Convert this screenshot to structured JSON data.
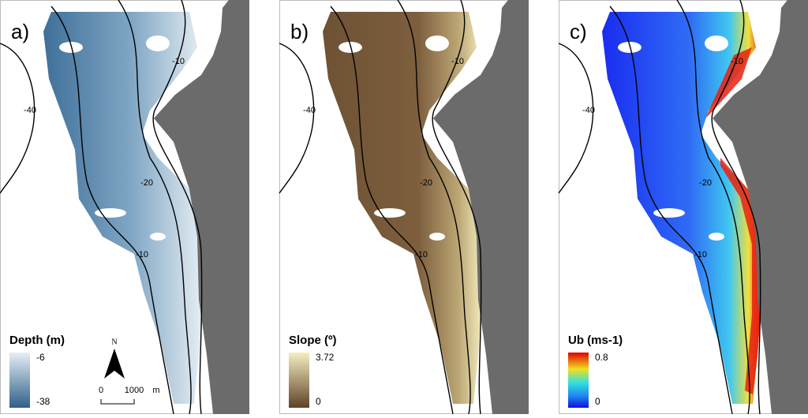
{
  "panels": [
    {
      "label": "a)",
      "contour_labels": [
        "-40",
        "-10",
        "-20",
        "-10"
      ],
      "legend": {
        "title": "Depth (m)",
        "top": "-6",
        "bottom": "-38"
      }
    },
    {
      "label": "b)",
      "contour_labels": [
        "-40",
        "-10",
        "-20",
        "-10"
      ],
      "legend": {
        "title": "Slope (º)",
        "top": "3.72",
        "bottom": "0"
      }
    },
    {
      "label": "c)",
      "contour_labels": [
        "-40",
        "-10",
        "-20",
        "-10"
      ],
      "legend": {
        "title": "Ub (ms-1)",
        "top": "0.8",
        "bottom": "0"
      }
    }
  ],
  "north_arrow": "N",
  "scale_bar": {
    "start": "0",
    "end": "1000",
    "unit": "m"
  }
}
